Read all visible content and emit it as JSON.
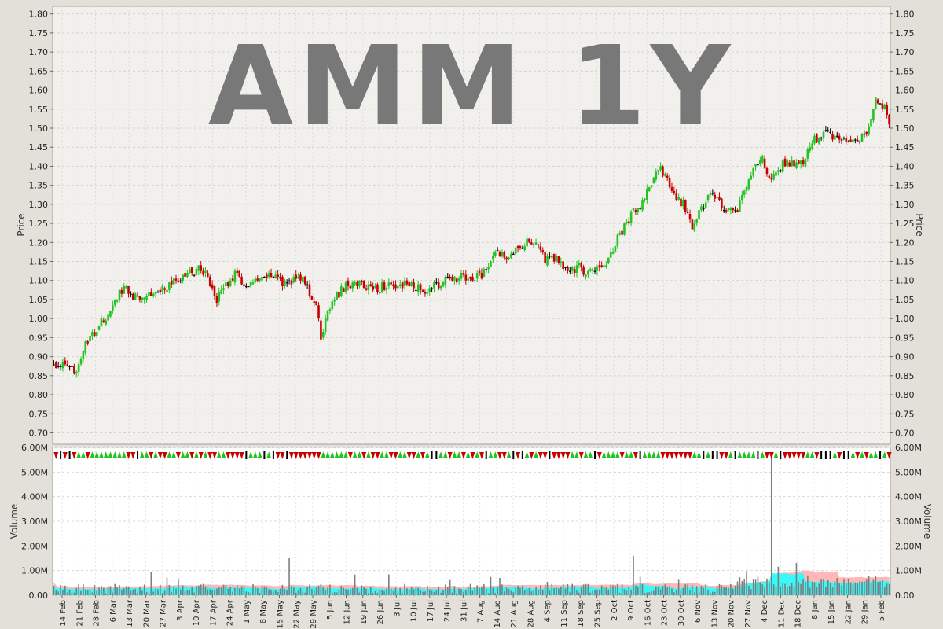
{
  "colors": {
    "background": "#e3e0da",
    "price_panel": "#f1f0ec",
    "volume_panel": "#ffffff",
    "up": "#22c322",
    "down": "#c80000",
    "unchanged": "#000000",
    "volume_bar": "#7d7d7d",
    "vol_ma_long": "#ffaaaa",
    "vol_ma_short": "#22ffff",
    "watermark": "#787878"
  },
  "chart_data": [
    {
      "type": "candlestick",
      "watermark": "AMM 1Y",
      "ylabel": "Price",
      "ylim": [
        0.67,
        1.82
      ],
      "yticks": [
        "0.70",
        "0.75",
        "0.80",
        "0.85",
        "0.90",
        "0.95",
        "1.00",
        "1.05",
        "1.10",
        "1.15",
        "1.20",
        "1.25",
        "1.30",
        "1.35",
        "1.40",
        "1.45",
        "1.50",
        "1.55",
        "1.60",
        "1.65",
        "1.70",
        "1.75",
        "1.80"
      ],
      "grid": true,
      "points": [
        [
          0,
          0.875
        ],
        [
          3,
          0.88
        ],
        [
          7,
          0.865
        ],
        [
          10,
          0.87
        ],
        [
          14,
          0.93
        ],
        [
          18,
          0.96
        ],
        [
          22,
          1.0
        ],
        [
          25,
          1.01
        ],
        [
          28,
          1.06
        ],
        [
          31,
          1.085
        ],
        [
          35,
          1.06
        ],
        [
          40,
          1.065
        ],
        [
          45,
          1.07
        ],
        [
          50,
          1.085
        ],
        [
          55,
          1.1
        ],
        [
          60,
          1.12
        ],
        [
          64,
          1.135
        ],
        [
          68,
          1.11
        ],
        [
          72,
          1.05
        ],
        [
          76,
          1.09
        ],
        [
          80,
          1.115
        ],
        [
          85,
          1.085
        ],
        [
          90,
          1.095
        ],
        [
          95,
          1.11
        ],
        [
          98,
          1.12
        ],
        [
          101,
          1.09
        ],
        [
          105,
          1.1
        ],
        [
          108,
          1.12
        ],
        [
          112,
          1.08
        ],
        [
          116,
          1.03
        ],
        [
          118,
          0.95
        ],
        [
          121,
          1.02
        ],
        [
          125,
          1.06
        ],
        [
          129,
          1.085
        ],
        [
          133,
          1.095
        ],
        [
          137,
          1.085
        ],
        [
          141,
          1.08
        ],
        [
          146,
          1.085
        ],
        [
          150,
          1.08
        ],
        [
          155,
          1.09
        ],
        [
          160,
          1.08
        ],
        [
          165,
          1.075
        ],
        [
          170,
          1.09
        ],
        [
          175,
          1.105
        ],
        [
          180,
          1.11
        ],
        [
          185,
          1.1
        ],
        [
          190,
          1.12
        ],
        [
          195,
          1.175
        ],
        [
          200,
          1.165
        ],
        [
          205,
          1.19
        ],
        [
          210,
          1.205
        ],
        [
          214,
          1.2
        ],
        [
          217,
          1.15
        ],
        [
          221,
          1.16
        ],
        [
          225,
          1.14
        ],
        [
          228,
          1.12
        ],
        [
          232,
          1.14
        ],
        [
          235,
          1.12
        ],
        [
          240,
          1.125
        ],
        [
          244,
          1.15
        ],
        [
          248,
          1.2
        ],
        [
          252,
          1.24
        ],
        [
          256,
          1.28
        ],
        [
          260,
          1.3
        ],
        [
          264,
          1.36
        ],
        [
          268,
          1.39
        ],
        [
          271,
          1.36
        ],
        [
          274,
          1.32
        ],
        [
          278,
          1.3
        ],
        [
          282,
          1.24
        ],
        [
          286,
          1.29
        ],
        [
          290,
          1.33
        ],
        [
          294,
          1.3
        ],
        [
          298,
          1.285
        ],
        [
          302,
          1.29
        ],
        [
          306,
          1.35
        ],
        [
          310,
          1.4
        ],
        [
          313,
          1.42
        ],
        [
          316,
          1.36
        ],
        [
          320,
          1.4
        ],
        [
          324,
          1.41
        ],
        [
          328,
          1.4
        ],
        [
          332,
          1.42
        ],
        [
          336,
          1.47
        ],
        [
          340,
          1.49
        ],
        [
          344,
          1.48
        ],
        [
          348,
          1.47
        ],
        [
          352,
          1.46
        ],
        [
          356,
          1.47
        ],
        [
          360,
          1.5
        ],
        [
          363,
          1.58
        ],
        [
          366,
          1.56
        ],
        [
          369,
          1.52
        ]
      ]
    },
    {
      "type": "volume",
      "ylabel": "Volume",
      "ylim": [
        0,
        6000000
      ],
      "yticks": [
        "0.00",
        "1.00M",
        "2.00M",
        "3.00M",
        "4.00M",
        "5.00M",
        "6.00M"
      ],
      "peak_volume": 5600000,
      "xticks": [
        "14 Feb",
        "21 Feb",
        "28 Feb",
        "6 Mar",
        "13 Mar",
        "20 Mar",
        "27 Mar",
        "3 Apr",
        "10 Apr",
        "17 Apr",
        "24 Apr",
        "1 May",
        "8 May",
        "15 May",
        "22 May",
        "29 May",
        "5 Jun",
        "12 Jun",
        "19 Jun",
        "26 Jun",
        "3 Jul",
        "10 Jul",
        "17 Jul",
        "24 Jul",
        "31 Jul",
        "7 Aug",
        "14 Aug",
        "21 Aug",
        "28 Aug",
        "4 Sep",
        "11 Sep",
        "18 Sep",
        "25 Sep",
        "2 Oct",
        "9 Oct",
        "16 Oct",
        "23 Oct",
        "30 Oct",
        "6 Nov",
        "13 Nov",
        "20 Nov",
        "27 Nov",
        "4 Dec",
        "11 Dec",
        "18 Dec",
        "8 Jan",
        "15 Jan",
        "22 Jan",
        "29 Jan",
        "5 Feb"
      ]
    }
  ]
}
